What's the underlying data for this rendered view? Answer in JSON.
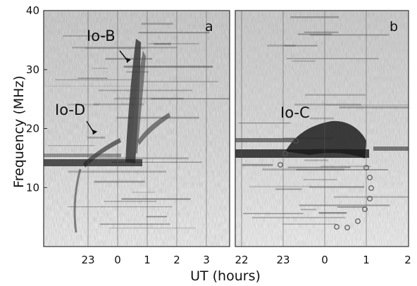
{
  "chart_data": [
    {
      "type": "heatmap",
      "panel": "a",
      "xlabel": "",
      "ylabel": "Frequency (MHz)",
      "x_ticks": [
        "23",
        "0",
        "1",
        "2",
        "3"
      ],
      "y_ticks": [
        "10",
        "20",
        "30",
        "40"
      ],
      "ylim": [
        0,
        40
      ],
      "annotations": [
        {
          "label": "Io-B",
          "points_to": {
            "x": "0.5",
            "y": 33
          }
        },
        {
          "label": "Io-D",
          "points_to": {
            "x": "23.3",
            "y": 18
          }
        }
      ]
    },
    {
      "type": "heatmap",
      "panel": "b",
      "xlabel": "UT (hours)",
      "ylabel": "",
      "x_ticks": [
        "22",
        "23",
        "0",
        "1",
        "2"
      ],
      "ylim": [
        0,
        40
      ],
      "annotations": [
        {
          "label": "Io-C",
          "points_to": {
            "x": "23.8",
            "y": 20
          }
        }
      ]
    }
  ],
  "axis_titles": {
    "y": "Frequency (MHz)",
    "x": "UT (hours)"
  }
}
